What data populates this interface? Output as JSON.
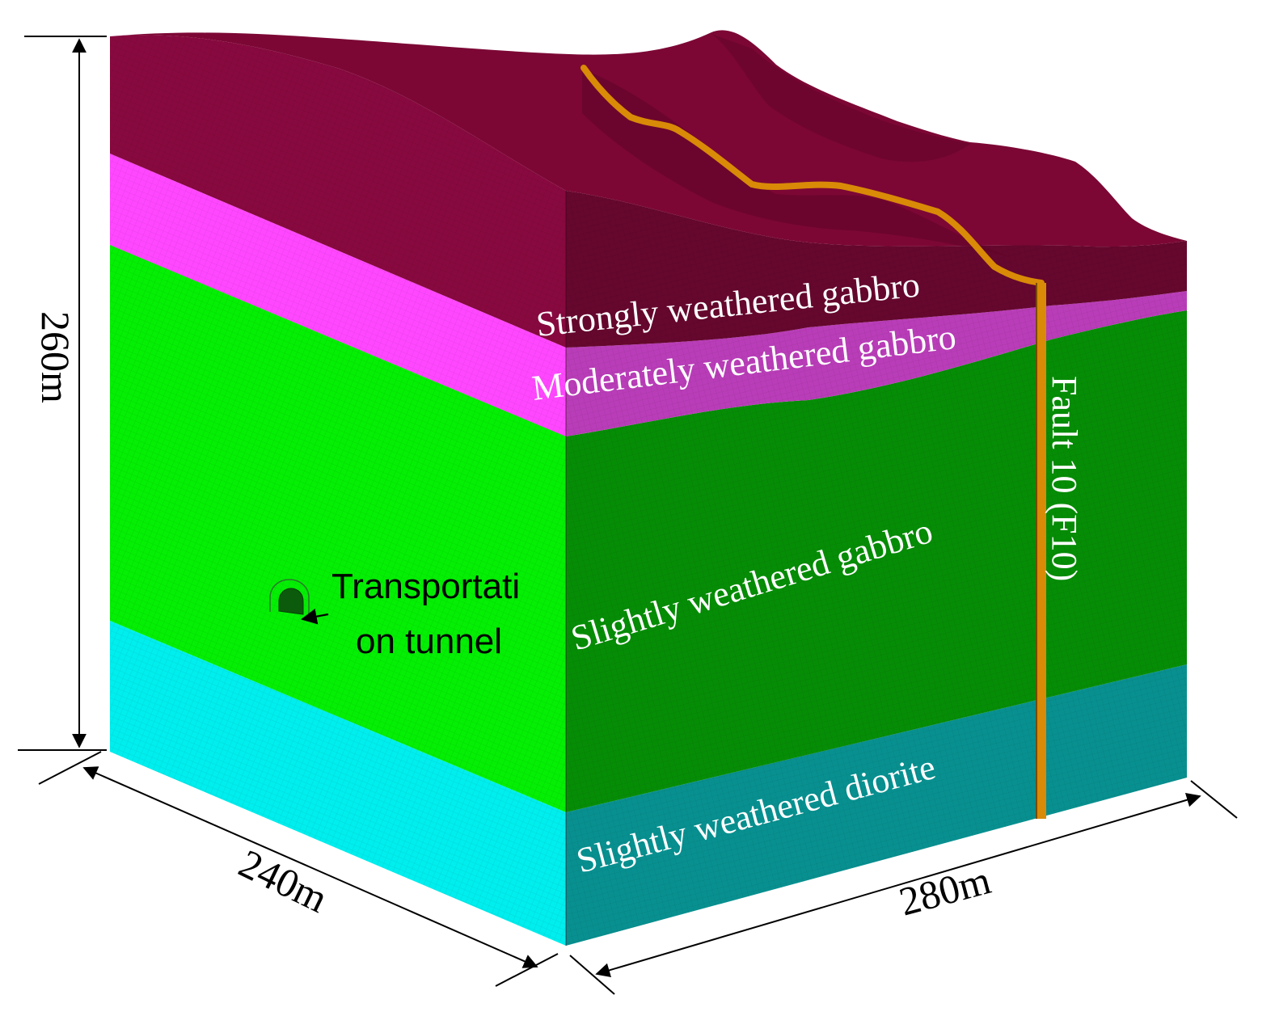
{
  "dimensions": {
    "height": "260m",
    "width_left": "240m",
    "width_right": "280m"
  },
  "layers": [
    {
      "label": "Strongly weathered gabbro",
      "color_front": "#88093f",
      "color_side": "#66072e",
      "text_color": "#ffffff"
    },
    {
      "label": "Moderately weathered gabbro",
      "color_front": "#ff47ff",
      "color_side": "#b93db8",
      "text_color": "#ffffff"
    },
    {
      "label": "Slightly weathered gabbro",
      "color_front": "#04ef04",
      "color_side": "#068d06",
      "text_color": "#ffffff"
    },
    {
      "label": "Slightly weathered diorite",
      "color_front": "#00eeee",
      "color_side": "#089090",
      "text_color": "#ffffff"
    }
  ],
  "fault": {
    "label": "Fault 10 (F10)",
    "color": "#d98a07",
    "edge_color": "#7a4a00"
  },
  "tunnel": {
    "label_line1": "Transportati",
    "label_line2": "on tunnel"
  },
  "colors": {
    "top_surface": "#7c0735",
    "top_surface_shade": "#5e0427",
    "background": "#ffffff"
  }
}
